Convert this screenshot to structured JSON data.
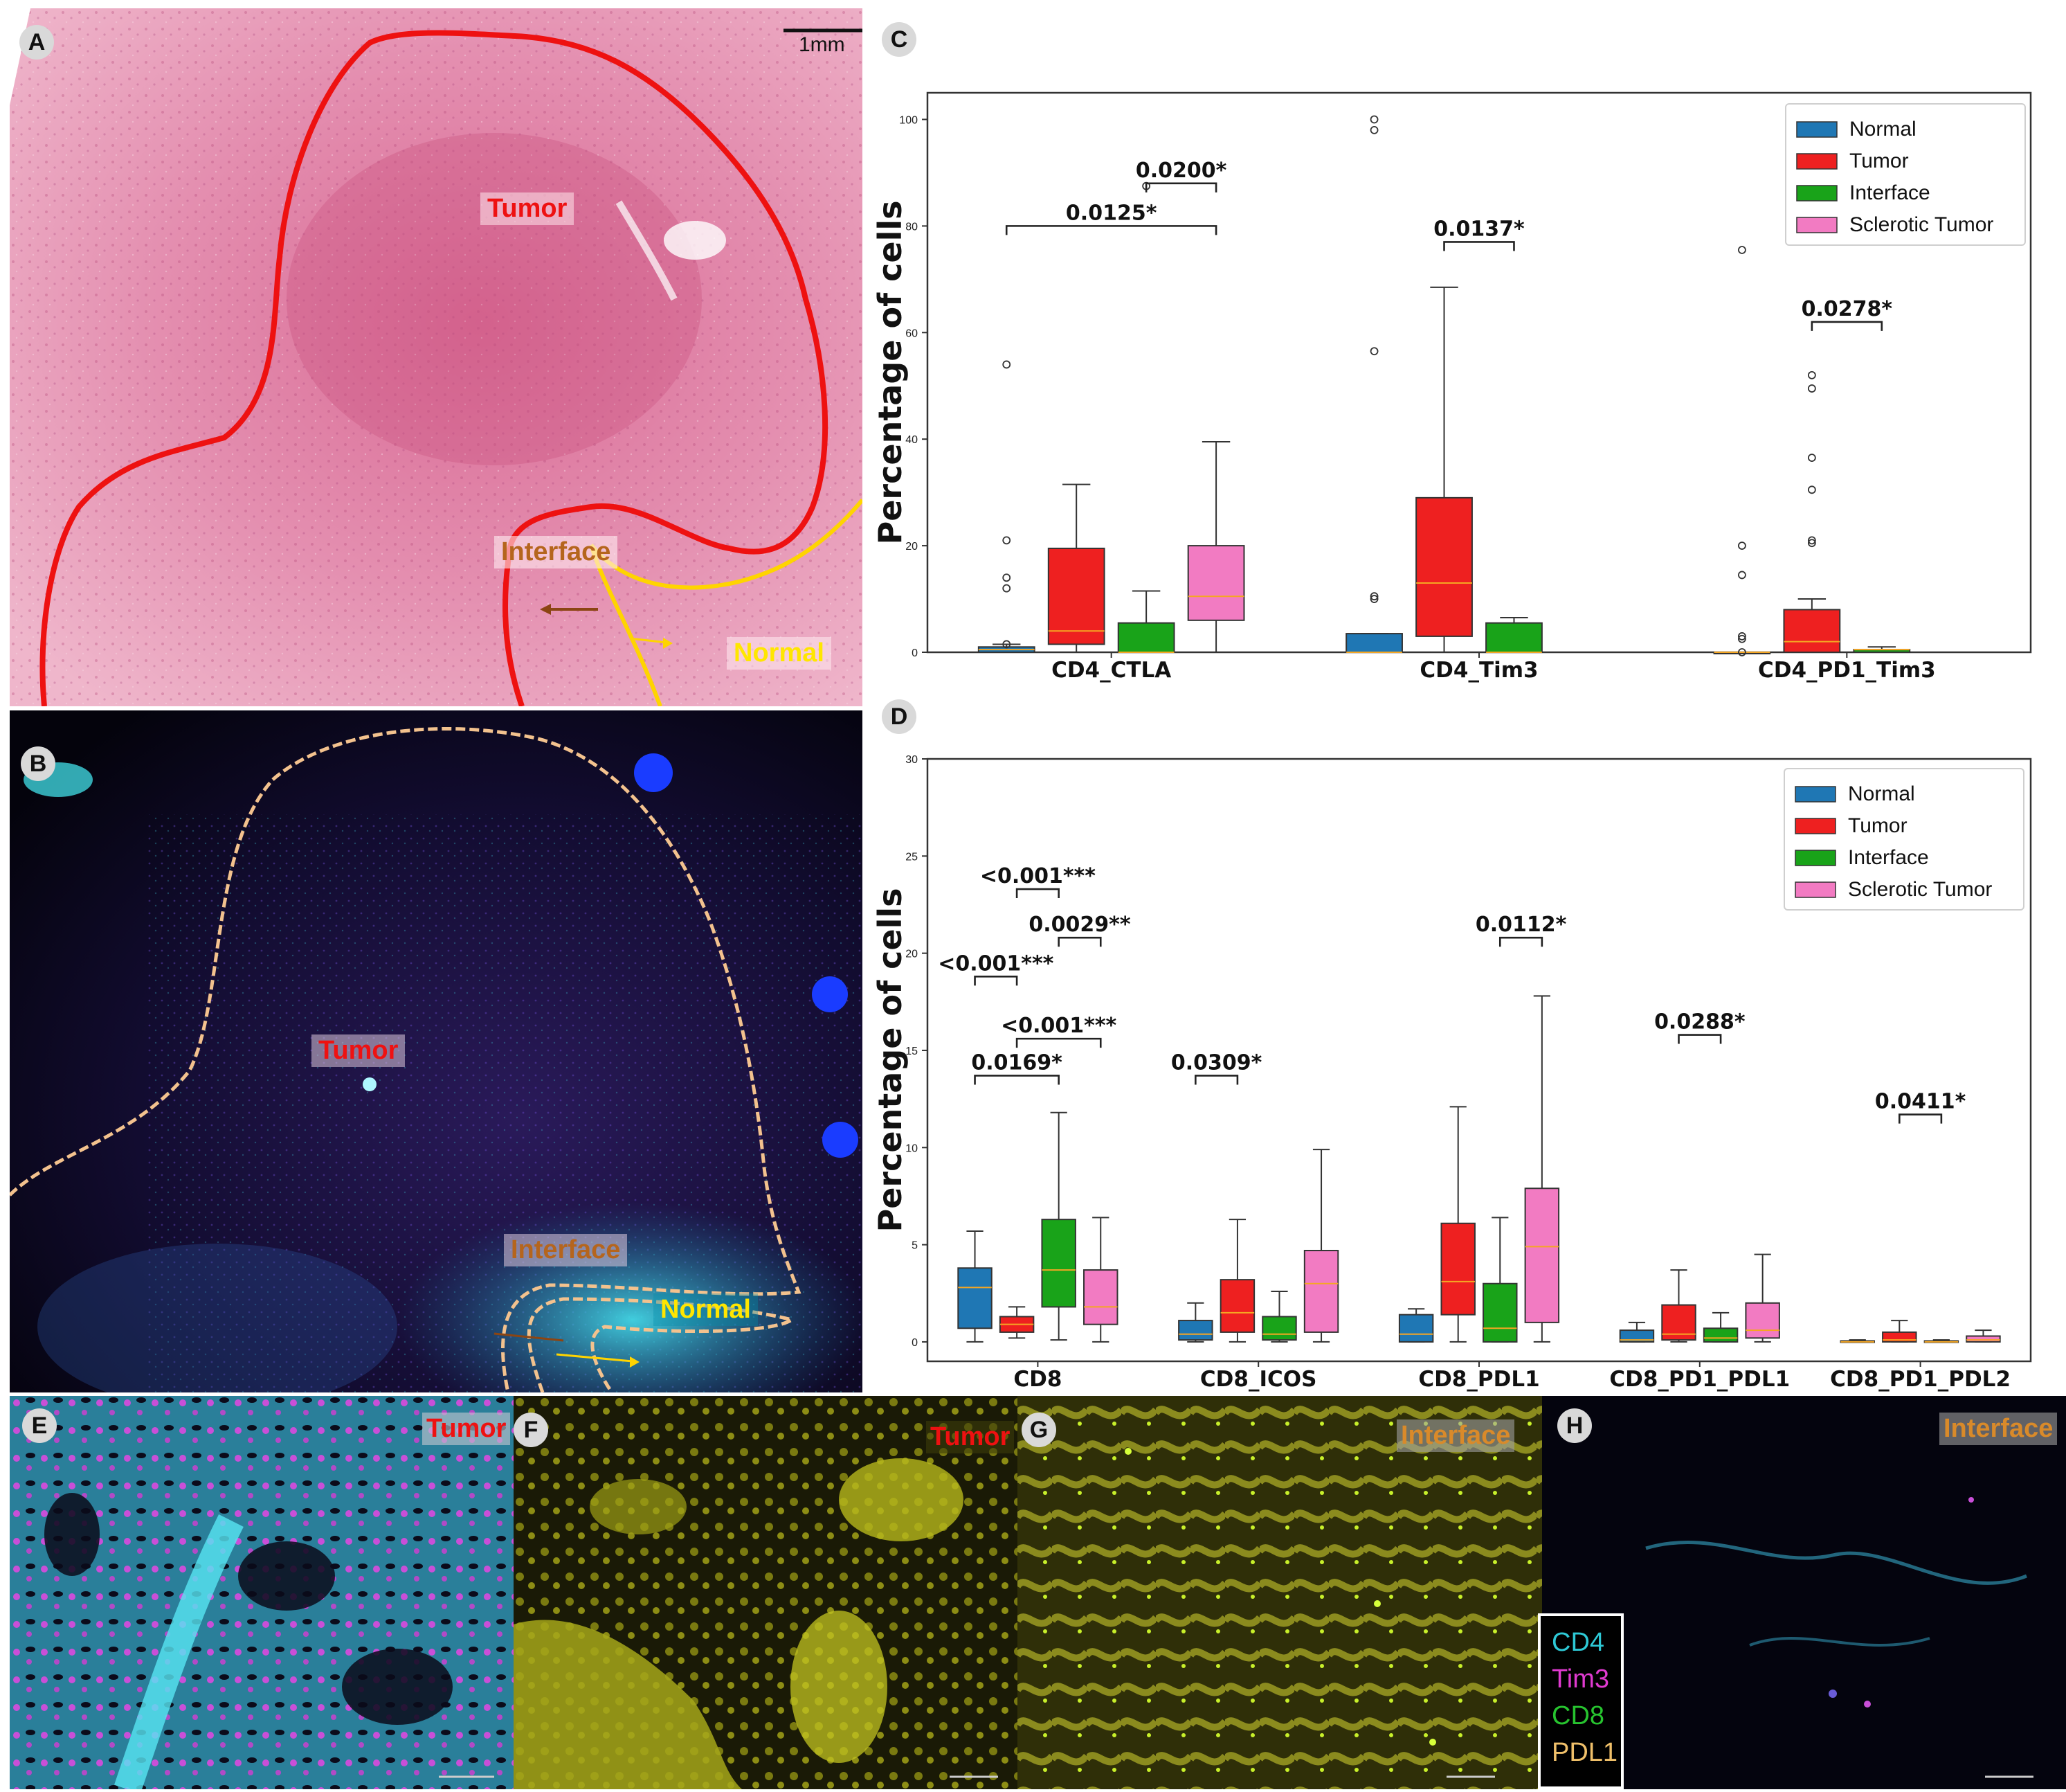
{
  "panels": {
    "A": {
      "letter": "A",
      "scale_label": "1mm",
      "region_tumor": "Tumor",
      "region_interface": "Interface",
      "region_normal": "Normal"
    },
    "B": {
      "letter": "B",
      "region_tumor": "Tumor",
      "region_interface": "Interface",
      "region_normal": "Normal"
    },
    "C": {
      "letter": "C"
    },
    "D": {
      "letter": "D"
    },
    "E": {
      "letter": "E",
      "label": "Tumor"
    },
    "F": {
      "letter": "F",
      "label": "Tumor"
    },
    "G": {
      "letter": "G",
      "label": "Interface"
    },
    "H": {
      "letter": "H",
      "label": "Interface"
    }
  },
  "channel_legend": [
    {
      "label": "CD4",
      "color": "#2ec9d6"
    },
    {
      "label": "Tim3",
      "color": "#e03ad0"
    },
    {
      "label": "CD8",
      "color": "#27c42f"
    },
    {
      "label": "PDL1",
      "color": "#f0c06a"
    }
  ],
  "colors": {
    "normal": "#1f77b4",
    "tumor": "#ee2020",
    "interface": "#19a319",
    "sclerotic": "#f27bc2",
    "median": "#f5a623"
  },
  "chart_data": [
    {
      "type": "box",
      "ylabel": "Percentage of cells",
      "ylim": [
        0,
        105
      ],
      "yticks": [
        0,
        20,
        40,
        60,
        80,
        100
      ],
      "legend_position": "top-right",
      "legend": [
        "Normal",
        "Tumor",
        "Interface",
        "Sclerotic Tumor"
      ],
      "categories": [
        "CD4_CTLA",
        "CD4_Tim3",
        "CD4_PD1_Tim3"
      ],
      "groups": [
        {
          "category": "CD4_CTLA",
          "boxes": [
            {
              "series": "Normal",
              "q1": 0,
              "median": 0.5,
              "q3": 1,
              "whislo": 0,
              "whishi": 1.5,
              "fliers": [
                54,
                21,
                14,
                12,
                1.5
              ]
            },
            {
              "series": "Tumor",
              "q1": 1.5,
              "median": 4,
              "q3": 19.5,
              "whislo": 0,
              "whishi": 31.5,
              "fliers": []
            },
            {
              "series": "Interface",
              "q1": 0,
              "median": 0,
              "q3": 5.5,
              "whislo": 0,
              "whishi": 11.5,
              "fliers": [
                87.5
              ]
            },
            {
              "series": "Sclerotic Tumor",
              "q1": 6,
              "median": 10.5,
              "q3": 20,
              "whislo": 0,
              "whishi": 39.5,
              "fliers": []
            }
          ]
        },
        {
          "category": "CD4_Tim3",
          "boxes": [
            {
              "series": "Normal",
              "q1": 0,
              "median": 0,
              "q3": 3.5,
              "whislo": 0,
              "whishi": 3.5,
              "fliers": [
                100,
                98,
                56.5,
                10.5,
                10
              ]
            },
            {
              "series": "Tumor",
              "q1": 3,
              "median": 13,
              "q3": 29,
              "whislo": 0,
              "whishi": 68.5,
              "fliers": []
            },
            {
              "series": "Interface",
              "q1": 0,
              "median": 0,
              "q3": 5.5,
              "whislo": 0,
              "whishi": 6.5,
              "fliers": []
            }
          ]
        },
        {
          "category": "CD4_PD1_Tim3",
          "boxes": [
            {
              "series": "Normal",
              "q1": 0,
              "median": 0,
              "q3": 0,
              "whislo": 0,
              "whishi": 0,
              "fliers": [
                75.5,
                20,
                14.5,
                3,
                2.5,
                0
              ]
            },
            {
              "series": "Tumor",
              "q1": 0,
              "median": 2,
              "q3": 8,
              "whislo": 0,
              "whishi": 10,
              "fliers": [
                52,
                49.5,
                36.5,
                30.5,
                21,
                20.5
              ]
            },
            {
              "series": "Interface",
              "q1": 0,
              "median": 0.5,
              "q3": 0.5,
              "whislo": 0,
              "whishi": 1,
              "fliers": []
            }
          ]
        }
      ],
      "significance": [
        {
          "category": "CD4_CTLA",
          "from": "Normal",
          "to": "Sclerotic Tumor",
          "y": 80,
          "label": "0.0125*"
        },
        {
          "category": "CD4_CTLA",
          "from": "Interface",
          "to": "Sclerotic Tumor",
          "y": 88,
          "label": "0.0200*"
        },
        {
          "category": "CD4_Tim3",
          "from": "Tumor",
          "to": "Interface",
          "y": 77,
          "label": "0.0137*"
        },
        {
          "category": "CD4_PD1_Tim3",
          "from": "Tumor",
          "to": "Interface",
          "y": 62,
          "label": "0.0278*"
        }
      ]
    },
    {
      "type": "box",
      "ylabel": "Percentage of cells",
      "ylim": [
        -1,
        30
      ],
      "yticks": [
        0,
        5,
        10,
        15,
        20,
        25,
        30
      ],
      "legend_position": "top-right",
      "legend": [
        "Normal",
        "Tumor",
        "Interface",
        "Sclerotic Tumor"
      ],
      "categories": [
        "CD8",
        "CD8_ICOS",
        "CD8_PDL1",
        "CD8_PD1_PDL1",
        "CD8_PD1_PDL2"
      ],
      "groups": [
        {
          "category": "CD8",
          "boxes": [
            {
              "series": "Normal",
              "q1": 0.7,
              "median": 2.8,
              "q3": 3.8,
              "whislo": 0,
              "whishi": 5.7,
              "fliers": []
            },
            {
              "series": "Tumor",
              "q1": 0.5,
              "median": 0.9,
              "q3": 1.3,
              "whislo": 0.2,
              "whishi": 1.8,
              "fliers": []
            },
            {
              "series": "Interface",
              "q1": 1.8,
              "median": 3.7,
              "q3": 6.3,
              "whislo": 0.1,
              "whishi": 11.8,
              "fliers": []
            },
            {
              "series": "Sclerotic Tumor",
              "q1": 0.9,
              "median": 1.8,
              "q3": 3.7,
              "whislo": 0,
              "whishi": 6.4,
              "fliers": []
            }
          ]
        },
        {
          "category": "CD8_ICOS",
          "boxes": [
            {
              "series": "Normal",
              "q1": 0.1,
              "median": 0.4,
              "q3": 1.1,
              "whislo": 0,
              "whishi": 2.0,
              "fliers": []
            },
            {
              "series": "Tumor",
              "q1": 0.5,
              "median": 1.5,
              "q3": 3.2,
              "whislo": 0,
              "whishi": 6.3,
              "fliers": []
            },
            {
              "series": "Interface",
              "q1": 0.1,
              "median": 0.4,
              "q3": 1.3,
              "whislo": 0,
              "whishi": 2.6,
              "fliers": []
            },
            {
              "series": "Sclerotic Tumor",
              "q1": 0.5,
              "median": 3.0,
              "q3": 4.7,
              "whislo": 0,
              "whishi": 9.9,
              "fliers": []
            }
          ]
        },
        {
          "category": "CD8_PDL1",
          "boxes": [
            {
              "series": "Normal",
              "q1": 0,
              "median": 0.4,
              "q3": 1.4,
              "whislo": 0,
              "whishi": 1.7,
              "fliers": []
            },
            {
              "series": "Tumor",
              "q1": 1.4,
              "median": 3.1,
              "q3": 6.1,
              "whislo": 0,
              "whishi": 12.1,
              "fliers": []
            },
            {
              "series": "Interface",
              "q1": 0,
              "median": 0.7,
              "q3": 3.0,
              "whislo": 0,
              "whishi": 6.4,
              "fliers": []
            },
            {
              "series": "Sclerotic Tumor",
              "q1": 1.0,
              "median": 4.9,
              "q3": 7.9,
              "whislo": 0,
              "whishi": 17.8,
              "fliers": []
            }
          ]
        },
        {
          "category": "CD8_PD1_PDL1",
          "boxes": [
            {
              "series": "Normal",
              "q1": 0,
              "median": 0.1,
              "q3": 0.6,
              "whislo": 0,
              "whishi": 1.0,
              "fliers": []
            },
            {
              "series": "Tumor",
              "q1": 0.1,
              "median": 0.4,
              "q3": 1.9,
              "whislo": 0,
              "whishi": 3.7,
              "fliers": []
            },
            {
              "series": "Interface",
              "q1": 0,
              "median": 0.2,
              "q3": 0.7,
              "whislo": 0,
              "whishi": 1.5,
              "fliers": []
            },
            {
              "series": "Sclerotic Tumor",
              "q1": 0.2,
              "median": 0.6,
              "q3": 2.0,
              "whislo": 0,
              "whishi": 4.5,
              "fliers": []
            }
          ]
        },
        {
          "category": "CD8_PD1_PDL2",
          "boxes": [
            {
              "series": "Normal",
              "q1": 0,
              "median": 0,
              "q3": 0.05,
              "whislo": 0,
              "whishi": 0.1,
              "fliers": []
            },
            {
              "series": "Tumor",
              "q1": 0,
              "median": 0.1,
              "q3": 0.5,
              "whislo": 0,
              "whishi": 1.1,
              "fliers": []
            },
            {
              "series": "Interface",
              "q1": 0,
              "median": 0,
              "q3": 0.05,
              "whislo": 0,
              "whishi": 0.1,
              "fliers": []
            },
            {
              "series": "Sclerotic Tumor",
              "q1": 0,
              "median": 0.1,
              "q3": 0.3,
              "whislo": 0,
              "whishi": 0.6,
              "fliers": []
            }
          ]
        }
      ],
      "significance": [
        {
          "category": "CD8",
          "from": "Normal",
          "to": "Interface",
          "y": 13.7,
          "label": "0.0169*"
        },
        {
          "category": "CD8",
          "from": "Tumor",
          "to": "Sclerotic Tumor",
          "y": 15.6,
          "label": "<0.001***"
        },
        {
          "category": "CD8",
          "from": "Normal",
          "to": "Tumor",
          "y": 18.8,
          "label": "<0.001***"
        },
        {
          "category": "CD8",
          "from": "Interface",
          "to": "Sclerotic Tumor",
          "y": 20.8,
          "label": "0.0029**"
        },
        {
          "category": "CD8",
          "from": "Tumor",
          "to": "Interface",
          "y": 23.3,
          "label": "<0.001***"
        },
        {
          "category": "CD8_ICOS",
          "from": "Normal",
          "to": "Tumor",
          "y": 13.7,
          "label": "0.0309*"
        },
        {
          "category": "CD8_PDL1",
          "from": "Interface",
          "to": "Sclerotic Tumor",
          "y": 20.8,
          "label": "0.0112*"
        },
        {
          "category": "CD8_PD1_PDL1",
          "from": "Tumor",
          "to": "Interface",
          "y": 15.8,
          "label": "0.0288*"
        },
        {
          "category": "CD8_PD1_PDL2",
          "from": "Tumor",
          "to": "Interface",
          "y": 11.7,
          "label": "0.0411*"
        }
      ]
    }
  ]
}
